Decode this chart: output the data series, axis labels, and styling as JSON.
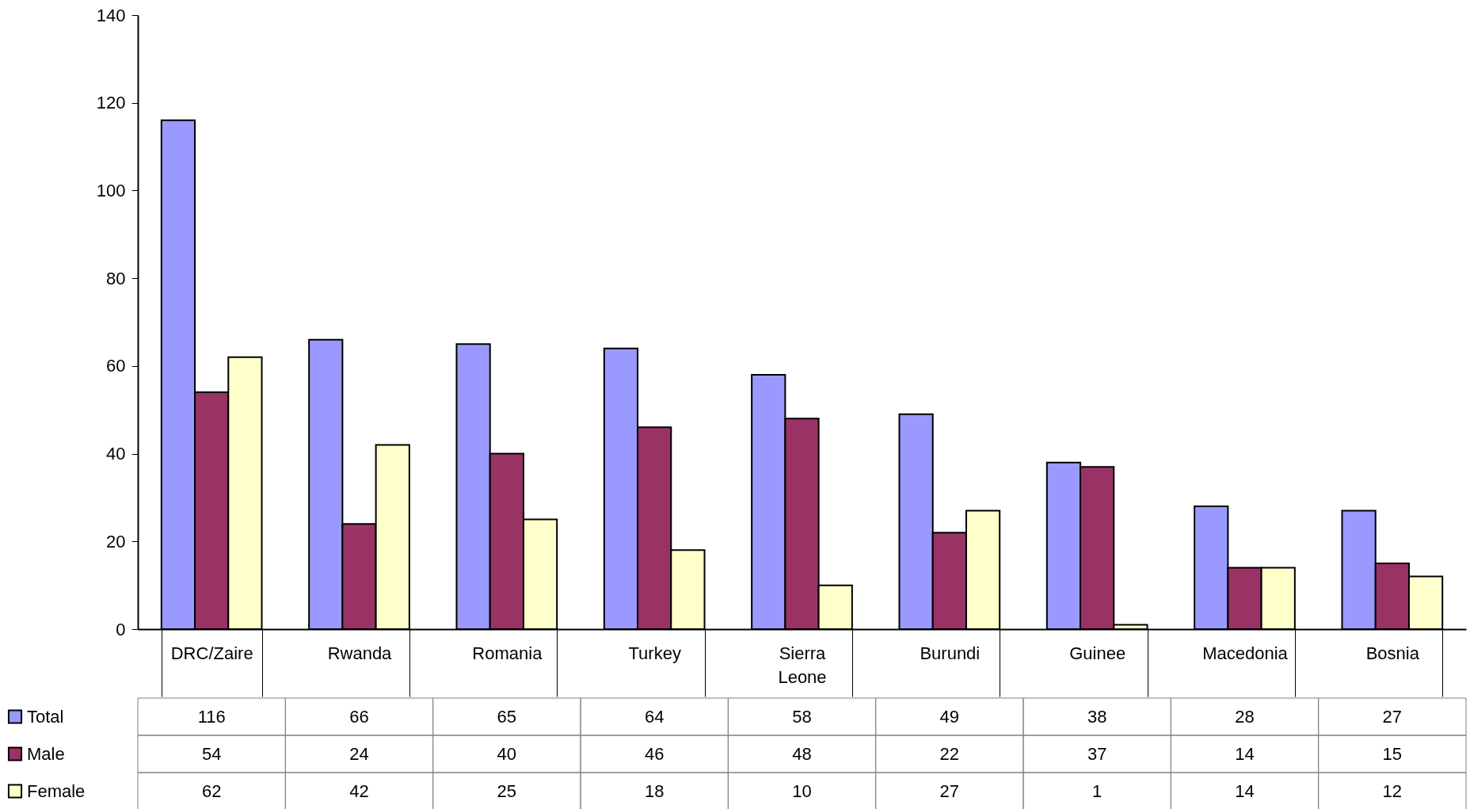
{
  "chart_data": {
    "type": "bar",
    "categories": [
      "DRC/Zaire",
      "Rwanda",
      "Romania",
      "Turkey",
      "Sierra Leone",
      "Burundi",
      "Guinee",
      "Macedonia",
      "Bosnia"
    ],
    "series": [
      {
        "name": "Total",
        "color": "#9999ff",
        "values": [
          116,
          66,
          65,
          64,
          58,
          49,
          38,
          28,
          27
        ]
      },
      {
        "name": "Male",
        "color": "#993366",
        "values": [
          54,
          24,
          40,
          46,
          48,
          22,
          37,
          14,
          15
        ]
      },
      {
        "name": "Female",
        "color": "#ffffcc",
        "values": [
          62,
          42,
          25,
          18,
          10,
          27,
          1,
          14,
          12
        ]
      }
    ],
    "ylim": [
      0,
      140
    ],
    "yticks": [
      0,
      20,
      40,
      60,
      80,
      100,
      120,
      140
    ],
    "data_labels": true,
    "legend": "bottom left"
  }
}
